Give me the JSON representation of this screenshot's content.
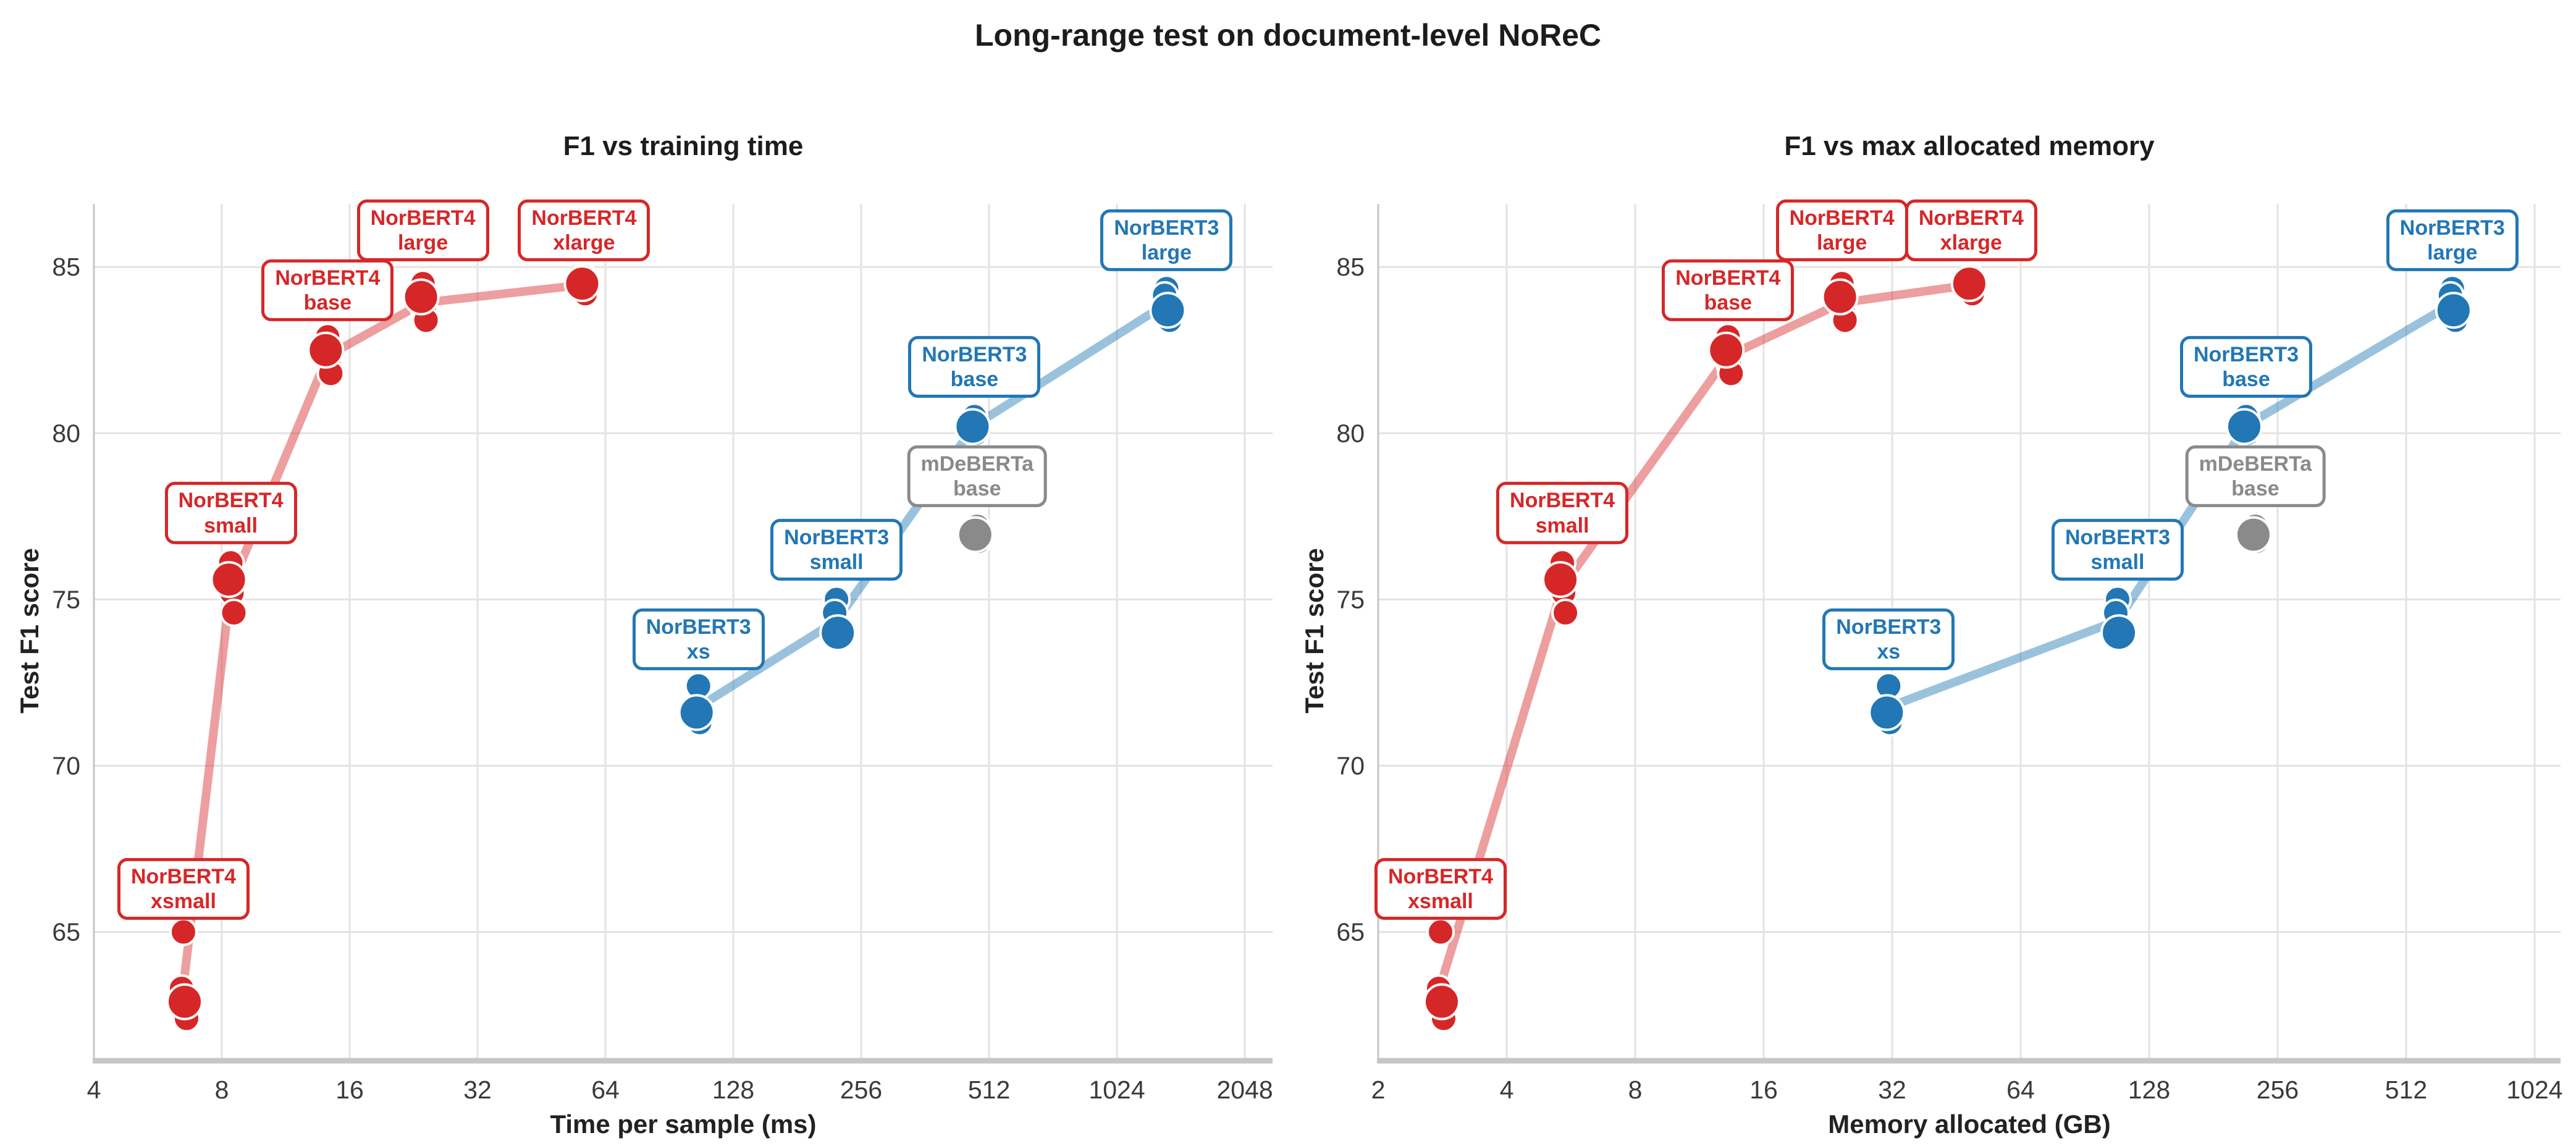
{
  "title": "Long-range test on document-level NoReC",
  "colors": {
    "norbert4_red": "#d62728",
    "norbert3_blue": "#2277b4",
    "mdeberta_gray": "#8a8a8a",
    "gridline": "#e3e3e3",
    "spine": "#c6c6c6",
    "title_text": "#1c1c1c",
    "tick_text": "#3a3a3a",
    "marker_edge": "#ffffff"
  },
  "chart_data": [
    {
      "type": "scatter",
      "title": "F1 vs training time",
      "xlabel": "Time per sample (ms)",
      "ylabel": "Test F1 score",
      "x_scale": "log2",
      "x_ticks": [
        4,
        8,
        16,
        32,
        64,
        128,
        256,
        512,
        1024,
        2048
      ],
      "y_ticks": [
        65,
        70,
        75,
        80,
        85
      ],
      "ylim": [
        61.2,
        86.9
      ],
      "grid": true,
      "x_key": "time_ms"
    },
    {
      "type": "scatter",
      "title": "F1 vs max allocated memory",
      "xlabel": "Memory allocated (GB)",
      "ylabel": "Test F1 score",
      "x_scale": "log2",
      "x_ticks": [
        2,
        4,
        8,
        16,
        32,
        64,
        128,
        256,
        512,
        1024
      ],
      "y_ticks": [
        65,
        70,
        75,
        80,
        85
      ],
      "ylim": [
        61.2,
        86.9
      ],
      "grid": true,
      "x_key": "memory_gb"
    }
  ],
  "series": [
    {
      "name": "NorBERT4",
      "color": "#d62728",
      "line_rgba": "rgba(214,39,40,0.45)",
      "has_line": true,
      "models": [
        {
          "label_line1": "NorBERT4",
          "label_line2": "xsmall",
          "time_ms": 6.5,
          "memory_gb": 2.8,
          "f1_runs": [
            65.0,
            63.3,
            62.9,
            62.4
          ],
          "big_index": 2,
          "label_f1": 66.3
        },
        {
          "label_line1": "NorBERT4",
          "label_line2": "small",
          "time_ms": 8.4,
          "memory_gb": 5.4,
          "f1_runs": [
            76.1,
            75.6,
            75.2,
            74.6
          ],
          "big_index": 1,
          "label_f1": 77.6
        },
        {
          "label_line1": "NorBERT4",
          "label_line2": "base",
          "time_ms": 14.2,
          "memory_gb": 13.2,
          "f1_runs": [
            82.9,
            82.5,
            82.1,
            81.8
          ],
          "big_index": 1,
          "label_f1": 84.3
        },
        {
          "label_line1": "NorBERT4",
          "label_line2": "large",
          "time_ms": 23.8,
          "memory_gb": 24.4,
          "f1_runs": [
            84.5,
            84.1,
            83.7,
            83.4
          ],
          "big_index": 1,
          "label_f1": 86.1
        },
        {
          "label_line1": "NorBERT4",
          "label_line2": "xlarge",
          "time_ms": 57,
          "memory_gb": 49,
          "f1_runs": [
            84.7,
            84.5,
            84.2
          ],
          "big_index": 1,
          "label_f1": 86.1
        }
      ]
    },
    {
      "name": "NorBERT3",
      "color": "#2277b4",
      "line_rgba": "rgba(34,119,180,0.45)",
      "has_line": true,
      "models": [
        {
          "label_line1": "NorBERT3",
          "label_line2": "xs",
          "time_ms": 106,
          "memory_gb": 31.4,
          "f1_runs": [
            72.4,
            71.6,
            71.3
          ],
          "big_index": 1,
          "label_f1": 73.8
        },
        {
          "label_line1": "NorBERT3",
          "label_line2": "small",
          "time_ms": 224,
          "memory_gb": 108,
          "f1_runs": [
            75.0,
            74.6,
            74.0,
            73.85
          ],
          "big_index": 2,
          "label_f1": 76.5
        },
        {
          "label_line1": "NorBERT3",
          "label_line2": "base",
          "time_ms": 473,
          "memory_gb": 216,
          "f1_runs": [
            80.5,
            80.2,
            80.0
          ],
          "big_index": 1,
          "label_f1": 82.0
        },
        {
          "label_line1": "NorBERT3",
          "label_line2": "large",
          "time_ms": 1340,
          "memory_gb": 657,
          "f1_runs": [
            84.35,
            84.15,
            83.7,
            83.4
          ],
          "big_index": 2,
          "label_f1": 85.8
        }
      ]
    },
    {
      "name": "mDeBERTa",
      "color": "#8a8a8a",
      "line_rgba": "rgba(138,138,138,0.45)",
      "has_line": false,
      "models": [
        {
          "label_line1": "mDeBERTa",
          "label_line2": "base",
          "time_ms": 480,
          "memory_gb": 227,
          "f1_runs": [
            77.2,
            76.95,
            76.75
          ],
          "big_index": 1,
          "label_f1": 78.7
        }
      ]
    }
  ]
}
